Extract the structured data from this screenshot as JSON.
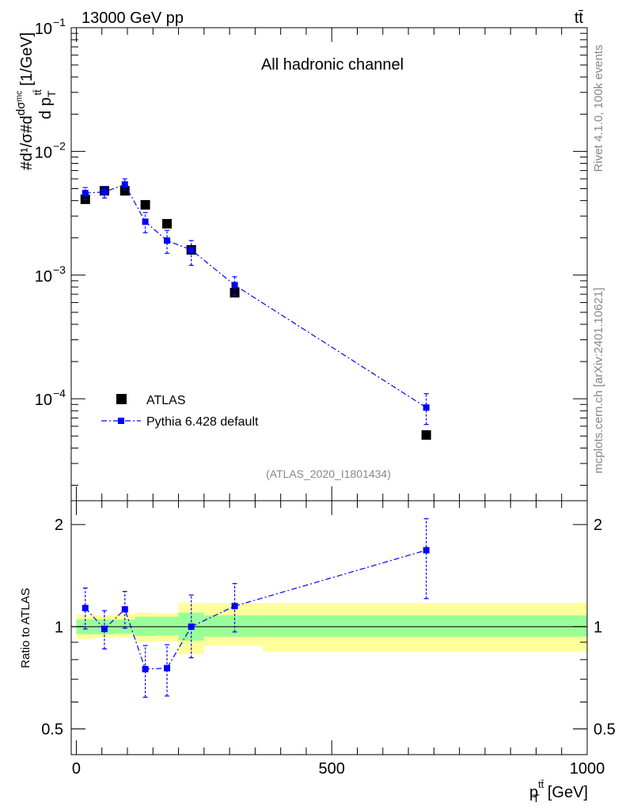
{
  "header": {
    "process": "13000 GeV pp",
    "final_state": "tt̄"
  },
  "side_labels": {
    "rivet": "Rivet 4.1.0,  100k events",
    "source": "mcplots.cern.ch [arXiv:2401.10621]"
  },
  "chart_data": [
    {
      "type": "scatter",
      "panel": "main",
      "title": "All hadronic channel",
      "analysis_id": "(ATLAS_2020_I1801434)",
      "ylabel": "#d¹/σ #d dσᵐᶜ / d p_T^{tt̄} [1/GeV]",
      "ylabel_parts": {
        "main": "#d¹/σ#d",
        "frac_num": "dσᵐᶜ",
        "frac_den": "d p",
        "sub": "T",
        "sup": "tt̄",
        "unit": "[1/GeV]"
      },
      "yscale": "log",
      "ylim": [
        1.5e-05,
        0.1
      ],
      "xlim": [
        -10,
        1000
      ],
      "y_tick_labels": [
        {
          "base": "10",
          "exp": "−1",
          "value": 0.1
        },
        {
          "base": "10",
          "exp": "−2",
          "value": 0.01
        },
        {
          "base": "10",
          "exp": "−3",
          "value": 0.001
        },
        {
          "base": "10",
          "exp": "−4",
          "value": 0.0001
        }
      ],
      "legend": {
        "position": "bottom-left",
        "entries": [
          "ATLAS",
          "Pythia 6.428 default"
        ]
      },
      "series": [
        {
          "name": "ATLAS",
          "style": "black-square",
          "x": [
            17.5,
            55,
            95,
            135,
            177.5,
            225,
            310,
            685
          ],
          "values": [
            0.0041,
            0.0048,
            0.0048,
            0.0037,
            0.0026,
            0.0016,
            0.00072,
            5.1e-05
          ]
        },
        {
          "name": "Pythia 6.428 default",
          "style": "blue-square-dashdot",
          "x": [
            17.5,
            55,
            95,
            135,
            177.5,
            225,
            310,
            685
          ],
          "values": [
            0.0046,
            0.0047,
            0.0054,
            0.0027,
            0.0019,
            0.0016,
            0.00083,
            8.5e-05
          ],
          "err_up": [
            0.0051,
            0.0052,
            0.006,
            0.0032,
            0.0023,
            0.0019,
            0.00097,
            0.00011
          ],
          "err_down": [
            0.0041,
            0.0042,
            0.0049,
            0.0022,
            0.0015,
            0.0012,
            0.00069,
            6.2e-05
          ]
        }
      ]
    },
    {
      "type": "scatter",
      "panel": "ratio",
      "ylabel": "Ratio to ATLAS",
      "xlabel_main": "p",
      "xlabel_sub": "T",
      "xlabel_sup": "tt̄",
      "xlabel_unit": "[GeV]",
      "yscale": "log",
      "ylim": [
        0.42,
        2.35
      ],
      "xlim": [
        -10,
        1000
      ],
      "x_tick_labels": [
        "0",
        "500",
        "1000"
      ],
      "x_ticks": [
        0,
        500,
        1000
      ],
      "y_tick_labels": [
        "2",
        "1",
        "0.5"
      ],
      "y_ticks": [
        2,
        1,
        0.5
      ],
      "bands": {
        "edges": [
          0,
          35,
          75,
          115,
          155,
          200,
          250,
          365,
          1000
        ],
        "inner_low": [
          0.95,
          0.95,
          0.955,
          0.94,
          0.945,
          0.91,
          0.935,
          0.935
        ],
        "inner_high": [
          1.05,
          1.05,
          1.05,
          1.07,
          1.07,
          1.1,
          1.08,
          1.08
        ],
        "outer_low": [
          0.92,
          0.93,
          0.93,
          0.905,
          0.905,
          0.83,
          0.88,
          0.845
        ],
        "outer_high": [
          1.085,
          1.08,
          1.09,
          1.1,
          1.095,
          1.175,
          1.175,
          1.175
        ]
      },
      "series": [
        {
          "name": "Pythia 6.428 default",
          "x": [
            17.5,
            55,
            95,
            135,
            177.5,
            225,
            310,
            685
          ],
          "values": [
            1.135,
            0.985,
            1.125,
            0.75,
            0.755,
            1.0,
            1.15,
            1.68
          ],
          "err_up": [
            1.3,
            1.115,
            1.27,
            0.88,
            0.885,
            1.24,
            1.34,
            2.08
          ],
          "err_down": [
            0.985,
            0.86,
            0.99,
            0.62,
            0.625,
            0.81,
            0.965,
            1.21
          ]
        }
      ]
    }
  ]
}
